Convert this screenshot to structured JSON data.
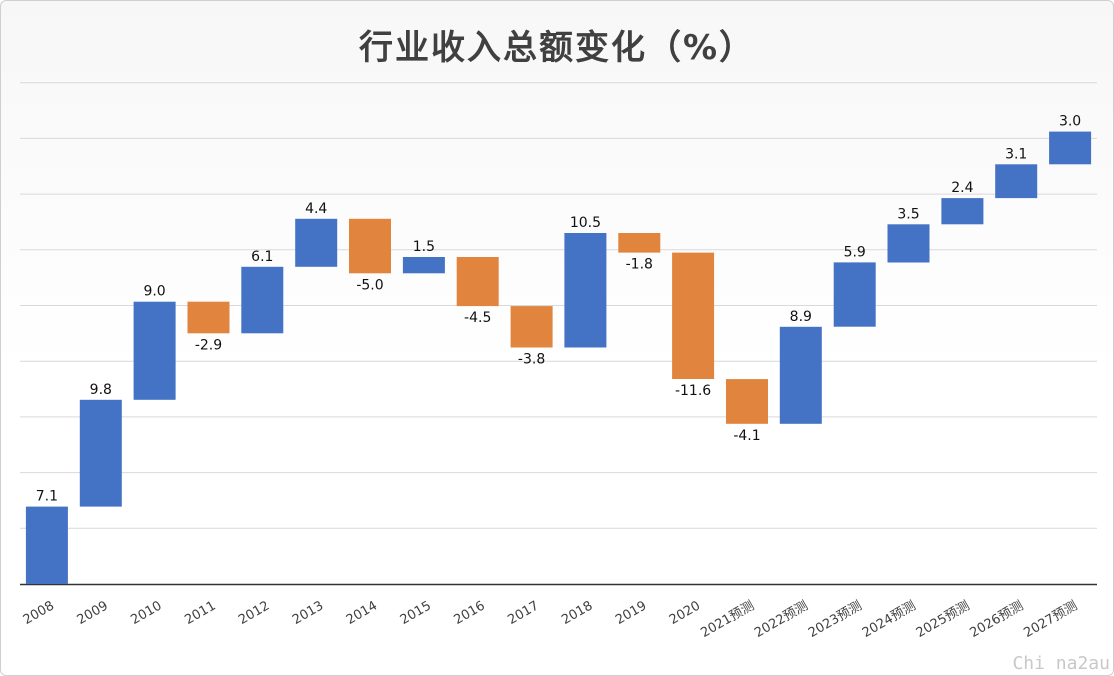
{
  "title": "行业收入总额变化（%）",
  "watermark": "Chi na2au",
  "colors": {
    "increase": "#4472c4",
    "decrease": "#e0843e",
    "grid": "#d9d9d9",
    "axis": "#333333"
  },
  "chart_data": {
    "type": "bar",
    "subtype": "waterfall",
    "title": "行业收入总额变化（%）",
    "xlabel": "",
    "ylabel": "",
    "grid": true,
    "legend": "none",
    "categories": [
      "2008",
      "2009",
      "2010",
      "2011",
      "2012",
      "2013",
      "2014",
      "2015",
      "2016",
      "2017",
      "2018",
      "2019",
      "2020",
      "2021预测",
      "2022预测",
      "2023预测",
      "2024预测",
      "2025预测",
      "2026预测",
      "2027预测"
    ],
    "values": [
      7.1,
      9.8,
      9.0,
      -2.9,
      6.1,
      4.4,
      -5.0,
      1.5,
      -4.5,
      -3.8,
      10.5,
      -1.8,
      -11.6,
      -4.1,
      8.9,
      5.9,
      3.5,
      2.4,
      3.1,
      3.0
    ],
    "labels": [
      "7.1",
      "9.8",
      "9.0",
      "-2.9",
      "6.1",
      "4.4",
      "-5.0",
      "1.5",
      "-4.5",
      "-3.8",
      "10.5",
      "-1.8",
      "-11.6",
      "-4.1",
      "8.9",
      "5.9",
      "3.5",
      "2.4",
      "3.1",
      "3.0"
    ]
  }
}
